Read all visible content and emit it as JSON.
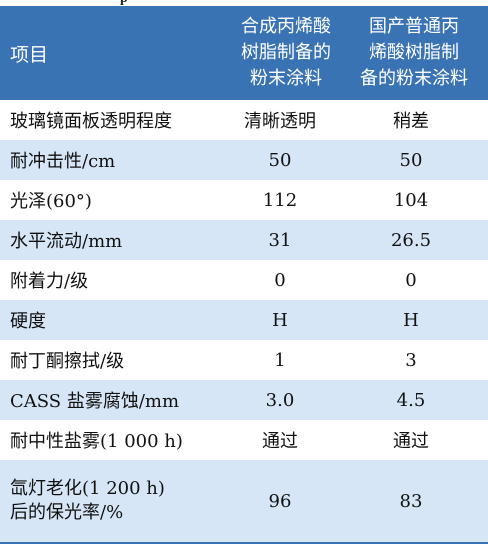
{
  "top_caption": "p",
  "header": {
    "col1": "项目",
    "col2_lines": [
      "合成丙烯酸",
      "树脂制备的",
      "粉末涂料"
    ],
    "col3_lines": [
      "国产普通丙",
      "烯酸树脂制",
      "备的粉末涂料"
    ]
  },
  "rows": [
    {
      "label": "玻璃镜面板透明程度",
      "v1": "清晰透明",
      "v2": "稍差"
    },
    {
      "label": "耐冲击性/cm",
      "v1": "50",
      "v2": "50"
    },
    {
      "label": "光泽(60°)",
      "v1": "112",
      "v2": "104"
    },
    {
      "label": "水平流动/mm",
      "v1": "31",
      "v2": "26.5"
    },
    {
      "label": "附着力/级",
      "v1": "0",
      "v2": "0"
    },
    {
      "label": "硬度",
      "v1": "H",
      "v2": "H"
    },
    {
      "label": "耐丁酮擦拭/级",
      "v1": "1",
      "v2": "3"
    },
    {
      "label": "CASS 盐雾腐蚀/mm",
      "v1": "3.0",
      "v2": "4.5"
    },
    {
      "label": "耐中性盐雾(1 000 h)",
      "v1": "通过",
      "v2": "通过"
    },
    {
      "label_lines": [
        "氙灯老化(1 200 h)",
        "后的保光率/%"
      ],
      "v1": "96",
      "v2": "83"
    }
  ],
  "colors": {
    "header_bg": "#3a73b3",
    "row_shade": "#d6e6f6",
    "text": "#111111"
  }
}
